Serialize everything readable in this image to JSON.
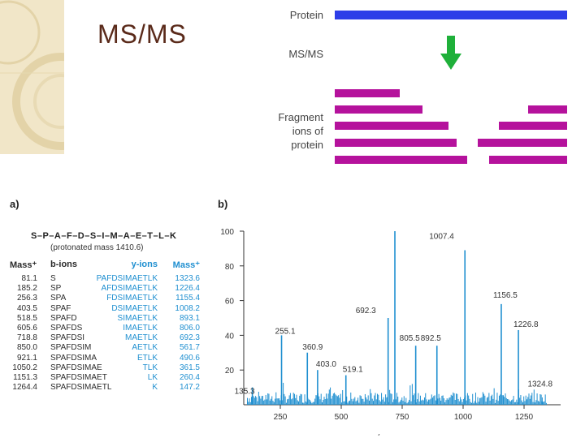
{
  "slide": {
    "title": "MS/MS"
  },
  "diagram": {
    "protein_label": "Protein",
    "msms_label": "MS/MS",
    "fragment_label_lines": [
      "Fragment",
      "ions of",
      "protein"
    ],
    "colors": {
      "protein_bar": "#2d3ee8",
      "arrow": "#1fb03a",
      "fragment_bar": "#b5129c"
    }
  },
  "panel_a": {
    "letter": "a)",
    "sequence": "S–P–A–F–D–S–I–M–A–E–T–L–K",
    "protonated_mass": "(protonated mass 1410.6)",
    "headers": {
      "mass_b": "Mass⁺",
      "b_ions": "b-ions",
      "y_ions": "y-ions",
      "mass_y": "Mass⁺"
    },
    "rows": [
      {
        "b_mass": "81.1",
        "b_ion": "S",
        "y_ion": "PAFDSIMAETLK",
        "y_mass": "1323.6"
      },
      {
        "b_mass": "185.2",
        "b_ion": "SP",
        "y_ion": "AFDSIMAETLK",
        "y_mass": "1226.4"
      },
      {
        "b_mass": "256.3",
        "b_ion": "SPA",
        "y_ion": "FDSIMAETLK",
        "y_mass": "1155.4"
      },
      {
        "b_mass": "403.5",
        "b_ion": "SPAF",
        "y_ion": "DSIMAETLK",
        "y_mass": "1008.2"
      },
      {
        "b_mass": "518.5",
        "b_ion": "SPAFD",
        "y_ion": "SIMAETLK",
        "y_mass": "893.1"
      },
      {
        "b_mass": "605.6",
        "b_ion": "SPAFDS",
        "y_ion": "IMAETLK",
        "y_mass": "806.0"
      },
      {
        "b_mass": "718.8",
        "b_ion": "SPAFDSI",
        "y_ion": "MAETLK",
        "y_mass": "692.3"
      },
      {
        "b_mass": "850.0",
        "b_ion": "SPAFDSIM",
        "y_ion": "AETLK",
        "y_mass": "561.7"
      },
      {
        "b_mass": "921.1",
        "b_ion": "SPAFDSIMA",
        "y_ion": "ETLK",
        "y_mass": "490.6"
      },
      {
        "b_mass": "1050.2",
        "b_ion": "SPAFDSIMAE",
        "y_ion": "TLK",
        "y_mass": "361.5"
      },
      {
        "b_mass": "1151.3",
        "b_ion": "SPAFDSIMAET",
        "y_ion": "LK",
        "y_mass": "260.4"
      },
      {
        "b_mass": "1264.4",
        "b_ion": "SPAFDSIMAETL",
        "y_ion": "K",
        "y_mass": "147.2"
      }
    ]
  },
  "chart_data": {
    "panel_letter": "b)",
    "type": "bar",
    "xlabel": "m/z",
    "ylabel": "",
    "xlim": [
      100,
      1400
    ],
    "ylim": [
      0,
      100
    ],
    "xticks": [
      250,
      500,
      750,
      1000,
      1250
    ],
    "yticks": [
      20,
      40,
      60,
      80,
      100
    ],
    "color": "#1f8fd0",
    "peaks": [
      {
        "x": 135.3,
        "y": 10,
        "label": "135.3"
      },
      {
        "x": 255.1,
        "y": 40,
        "label": "255.1"
      },
      {
        "x": 360.9,
        "y": 30,
        "label": "360.9"
      },
      {
        "x": 403.0,
        "y": 20,
        "label": "403.0"
      },
      {
        "x": 519.1,
        "y": 17,
        "label": "519.1"
      },
      {
        "x": 692.3,
        "y": 50,
        "label": "692.3"
      },
      {
        "x": 720.0,
        "y": 100,
        "label": ""
      },
      {
        "x": 805.5,
        "y": 34,
        "label": "805.5"
      },
      {
        "x": 892.5,
        "y": 34,
        "label": "892.5"
      },
      {
        "x": 1007.4,
        "y": 89,
        "label": "1007.4"
      },
      {
        "x": 1156.5,
        "y": 58,
        "label": "1156.5"
      },
      {
        "x": 1226.8,
        "y": 43,
        "label": "1226.8"
      },
      {
        "x": 1324.8,
        "y": 2,
        "label": "1324.8"
      }
    ]
  }
}
